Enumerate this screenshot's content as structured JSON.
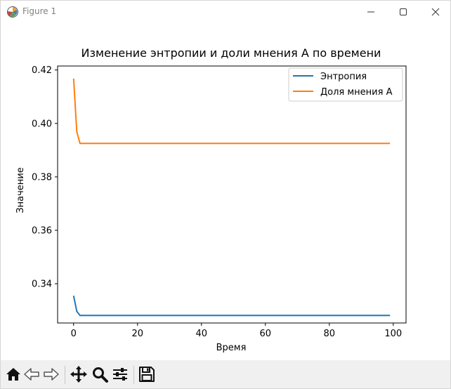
{
  "window": {
    "title": "Figure 1",
    "icons": {
      "app": "matplotlib-icon",
      "minimize": "minimize-icon",
      "maximize": "maximize-icon",
      "close": "close-icon"
    }
  },
  "toolbar": {
    "buttons": [
      {
        "name": "home",
        "icon": "home-icon"
      },
      {
        "name": "back",
        "icon": "arrow-left-icon"
      },
      {
        "name": "forward",
        "icon": "arrow-right-icon"
      },
      {
        "name": "pan",
        "icon": "move-icon"
      },
      {
        "name": "zoom",
        "icon": "zoom-icon"
      },
      {
        "name": "configure",
        "icon": "sliders-icon"
      },
      {
        "name": "save",
        "icon": "save-icon"
      }
    ]
  },
  "chart_data": {
    "type": "line",
    "title": "Изменение энтропии и доли мнения A по времени",
    "xlabel": "Время",
    "ylabel": "Значение",
    "xlim": [
      -5,
      104
    ],
    "ylim": [
      0.3253,
      0.4215
    ],
    "xticks": [
      0,
      20,
      40,
      60,
      80,
      100
    ],
    "yticks": [
      0.34,
      0.36,
      0.38,
      0.4,
      0.42
    ],
    "ytick_labels": [
      "0.34",
      "0.36",
      "0.38",
      "0.40",
      "0.42"
    ],
    "grid": false,
    "legend": "upper right",
    "series": [
      {
        "name": "Энтропия",
        "color": "#1f77b4",
        "x": [
          0,
          1,
          2,
          99
        ],
        "y": [
          0.3355,
          0.3297,
          0.3281,
          0.3281
        ]
      },
      {
        "name": "Доля мнения A",
        "color": "#ff7f0e",
        "x": [
          0,
          1,
          2,
          99
        ],
        "y": [
          0.4168,
          0.3969,
          0.3925,
          0.3925
        ]
      }
    ]
  }
}
